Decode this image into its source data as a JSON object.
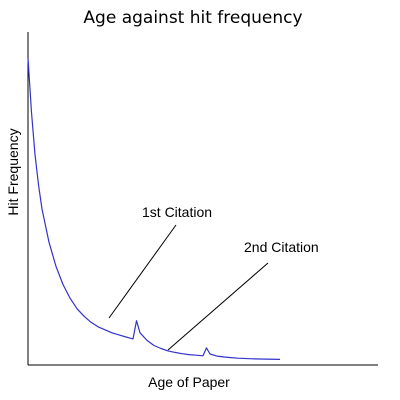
{
  "chart_data": {
    "type": "line",
    "title": "Age against hit frequency",
    "xlabel": "Age of Paper",
    "ylabel": "Hit Frequency",
    "xlim": [
      0,
      100
    ],
    "ylim": [
      0,
      100
    ],
    "grid": false,
    "legend": "none",
    "series": [
      {
        "color": "#3333cc",
        "x": [
          0,
          1,
          2,
          3,
          4,
          6,
          8,
          10,
          12,
          14,
          16,
          18,
          20,
          22,
          24,
          26,
          28,
          30,
          31,
          32,
          34,
          36,
          38,
          40,
          42,
          44,
          46,
          48,
          50,
          51,
          52,
          54,
          56,
          58,
          60,
          64,
          68,
          72
        ],
        "y": [
          100,
          82,
          68,
          58,
          50,
          39,
          31,
          25,
          20.5,
          17,
          14.5,
          12.5,
          11,
          10,
          9,
          8.3,
          7.6,
          7,
          13,
          9,
          6.5,
          4.8,
          3.8,
          3,
          2.5,
          2.1,
          1.8,
          1.6,
          1.4,
          4,
          2,
          1.3,
          1,
          0.8,
          0.6,
          0.4,
          0.3,
          0.2
        ]
      }
    ],
    "annotations": [
      {
        "text": "1st Citation",
        "x": 31,
        "y": 13
      },
      {
        "text": "2nd Citation",
        "x": 51,
        "y": 4
      }
    ]
  }
}
